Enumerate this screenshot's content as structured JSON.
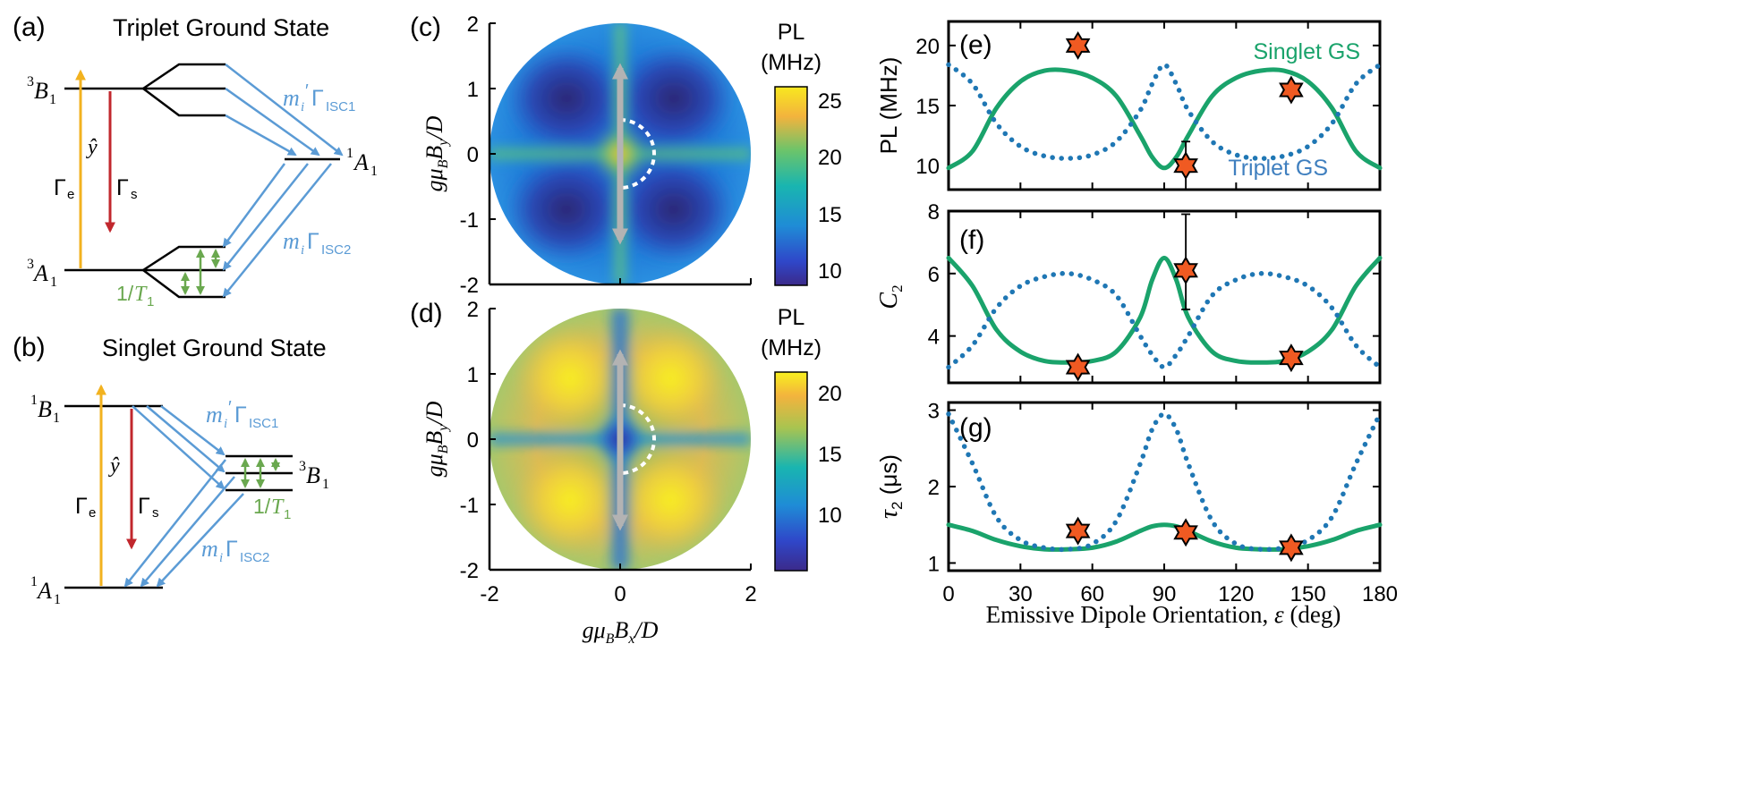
{
  "panel_a": {
    "tag": "(a)",
    "title": "Triplet Ground State",
    "upper": "B",
    "lower": "A",
    "sup": "3",
    "sub": "1",
    "axis_hat": "ŷ",
    "gamma_e": "Γ",
    "gamma_e_sub": "e",
    "gamma_s": "Γ",
    "gamma_s_sub": "s",
    "isc1_m": "m",
    "isc1_m_sub": "i",
    "isc1_prime": "′",
    "isc1_g": "Γ",
    "isc1_sub": "ISC1",
    "isc2_m": "m",
    "isc2_m_sub": "i",
    "isc2_g": "Γ",
    "isc2_sub": "ISC2",
    "right_level": "A",
    "right_sup": "1",
    "right_sub": "1",
    "t1_prefix": "1/",
    "t1_letter": "T",
    "t1_sub": "1"
  },
  "panel_b": {
    "tag": "(b)",
    "title": "Singlet Ground State",
    "upper": "B",
    "lower": "A",
    "sup": "1",
    "sub": "1",
    "axis_hat": "ŷ",
    "gamma_e": "Γ",
    "gamma_e_sub": "e",
    "gamma_s": "Γ",
    "gamma_s_sub": "s",
    "isc1_m": "m",
    "isc1_m_sub": "i",
    "isc1_prime": "′",
    "isc1_g": "Γ",
    "isc1_sub": "ISC1",
    "isc2_m": "m",
    "isc2_m_sub": "i",
    "isc2_g": "Γ",
    "isc2_sub": "ISC2",
    "right_level": "B",
    "right_sup": "3",
    "right_sub": "1",
    "t1_prefix": "1/",
    "t1_letter": "T",
    "t1_sub": "1"
  },
  "colors": {
    "yellow": "#f2b21f",
    "red": "#c1272d",
    "blue": "#5b9bd5",
    "green": "#6aa84f",
    "green_curve": "#1aa36b",
    "blue_curve": "#1f77b4",
    "star": "#f05a22"
  },
  "chart_data": [
    {
      "type": "heatmap",
      "tag": "(c)",
      "ylabel": "gμ_B B_y / D",
      "ylabel_parts": [
        "gμ",
        "B",
        "B",
        "y",
        "/D"
      ],
      "yticks": [
        "2",
        "1",
        "0",
        "-1",
        "-2"
      ],
      "xlim": [
        -2,
        2
      ],
      "ylim": [
        -2,
        2
      ],
      "colorbar": {
        "title1": "PL",
        "title2": "(MHz)",
        "ticks": [
          "25",
          "20",
          "15",
          "10"
        ],
        "range": [
          9,
          26.5
        ]
      }
    },
    {
      "type": "heatmap",
      "tag": "(d)",
      "ylabel": "gμ_B B_y / D",
      "ylabel_parts": [
        "gμ",
        "B",
        "B",
        "y",
        "/D"
      ],
      "xlabel": "gμ_B B_x / D",
      "xlabel_parts": [
        "gμ",
        "B",
        "B",
        "x",
        "/D"
      ],
      "xticks": [
        "-2",
        "0",
        "2"
      ],
      "yticks": [
        "2",
        "1",
        "0",
        "-1",
        "-2"
      ],
      "xlim": [
        -2,
        2
      ],
      "ylim": [
        -2,
        2
      ],
      "colorbar": {
        "title1": "PL",
        "title2": "(MHz)",
        "ticks": [
          "20",
          "15",
          "10"
        ],
        "range": [
          6,
          21.5
        ]
      }
    },
    {
      "type": "line",
      "tag": "(e)",
      "ylabel": "PL (MHz)",
      "ylim": [
        8,
        22
      ],
      "yticks": [
        "20",
        "15",
        "10"
      ],
      "xlim": [
        0,
        180
      ],
      "series": [
        {
          "name": "Singlet GS",
          "style": "solid",
          "x": [
            0,
            10,
            20,
            30,
            40,
            50,
            60,
            70,
            80,
            85,
            90,
            95,
            100,
            110,
            120,
            130,
            140,
            150,
            160,
            170,
            180
          ],
          "y": [
            9.8,
            11.2,
            14.8,
            17.0,
            17.9,
            17.9,
            17.3,
            15.8,
            12.5,
            10.7,
            9.8,
            10.7,
            12.5,
            15.8,
            17.3,
            17.9,
            17.9,
            17.0,
            14.8,
            11.2,
            9.8
          ]
        },
        {
          "name": "Triplet GS",
          "style": "dotted",
          "x": [
            0,
            10,
            20,
            30,
            40,
            50,
            60,
            70,
            80,
            85,
            90,
            95,
            100,
            110,
            120,
            130,
            140,
            150,
            160,
            170,
            180
          ],
          "y": [
            18.4,
            16.8,
            13.5,
            11.6,
            10.8,
            10.6,
            10.9,
            12.0,
            14.6,
            16.8,
            18.4,
            16.8,
            14.6,
            12.0,
            10.9,
            10.6,
            10.8,
            11.6,
            13.5,
            16.8,
            18.4
          ]
        }
      ],
      "points": [
        {
          "x": 54,
          "y": 20.0
        },
        {
          "x": 99,
          "y": 10.0,
          "err": [
            8.0,
            12.0
          ]
        },
        {
          "x": 143,
          "y": 16.3
        }
      ],
      "labels": {
        "singlet": "Singlet GS",
        "triplet": "Triplet GS"
      }
    },
    {
      "type": "line",
      "tag": "(f)",
      "ylabel": "C",
      "ylabel_sub": "2",
      "ylim": [
        2.5,
        8
      ],
      "yticks": [
        "8",
        "6",
        "4"
      ],
      "xlim": [
        0,
        180
      ],
      "series": [
        {
          "name": "Singlet GS",
          "style": "solid",
          "x": [
            0,
            10,
            20,
            30,
            40,
            50,
            60,
            70,
            80,
            85,
            90,
            95,
            100,
            110,
            120,
            130,
            140,
            150,
            160,
            170,
            180
          ],
          "y": [
            6.5,
            5.6,
            4.2,
            3.5,
            3.2,
            3.15,
            3.2,
            3.5,
            4.6,
            5.8,
            6.5,
            5.8,
            4.6,
            3.5,
            3.2,
            3.15,
            3.2,
            3.5,
            4.2,
            5.6,
            6.5
          ]
        },
        {
          "name": "Triplet GS",
          "style": "dotted",
          "x": [
            0,
            10,
            20,
            30,
            40,
            50,
            60,
            70,
            80,
            85,
            90,
            95,
            100,
            110,
            120,
            130,
            140,
            150,
            160,
            170,
            180
          ],
          "y": [
            3.0,
            3.7,
            4.9,
            5.6,
            5.9,
            6.0,
            5.8,
            5.3,
            4.0,
            3.4,
            3.0,
            3.4,
            4.0,
            5.3,
            5.8,
            6.0,
            5.9,
            5.6,
            4.9,
            3.7,
            3.0
          ]
        }
      ],
      "points": [
        {
          "x": 54,
          "y": 3.0
        },
        {
          "x": 99,
          "y": 6.1,
          "err": [
            4.85,
            7.9
          ]
        },
        {
          "x": 143,
          "y": 3.3
        }
      ]
    },
    {
      "type": "line",
      "tag": "(g)",
      "ylabel": "τ",
      "ylabel_sub": "2",
      "ylabel_unit": " (μs)",
      "ylim": [
        0.9,
        3.1
      ],
      "yticks": [
        "3",
        "2",
        "1"
      ],
      "xlim": [
        0,
        180
      ],
      "xticks": [
        "0",
        "30",
        "60",
        "90",
        "120",
        "150",
        "180"
      ],
      "xlabel": "Emissive Dipole Orientation, ",
      "xlabel_var": "ε",
      "xlabel_unit": " (deg)",
      "series": [
        {
          "name": "Singlet GS",
          "style": "solid",
          "x": [
            0,
            10,
            20,
            30,
            40,
            50,
            60,
            70,
            80,
            85,
            90,
            95,
            100,
            110,
            120,
            130,
            140,
            150,
            160,
            170,
            180
          ],
          "y": [
            1.5,
            1.42,
            1.3,
            1.22,
            1.18,
            1.18,
            1.2,
            1.28,
            1.42,
            1.48,
            1.5,
            1.48,
            1.42,
            1.28,
            1.2,
            1.18,
            1.18,
            1.22,
            1.3,
            1.42,
            1.5
          ]
        },
        {
          "name": "Triplet GS",
          "style": "dotted",
          "x": [
            0,
            10,
            20,
            30,
            40,
            50,
            60,
            70,
            80,
            85,
            90,
            95,
            100,
            110,
            120,
            130,
            140,
            150,
            160,
            170,
            180
          ],
          "y": [
            2.95,
            2.3,
            1.6,
            1.3,
            1.2,
            1.18,
            1.25,
            1.55,
            2.3,
            2.75,
            2.95,
            2.75,
            2.3,
            1.55,
            1.25,
            1.18,
            1.2,
            1.3,
            1.6,
            2.3,
            2.95
          ]
        }
      ],
      "points": [
        {
          "x": 54,
          "y": 1.42
        },
        {
          "x": 99,
          "y": 1.4
        },
        {
          "x": 143,
          "y": 1.2
        }
      ]
    }
  ]
}
